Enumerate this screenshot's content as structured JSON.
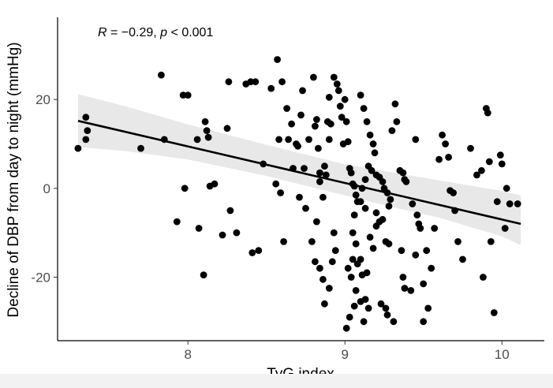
{
  "chart_data": {
    "type": "scatter",
    "xlabel": "TyG index",
    "ylabel": "Decline of DBP from day to night (mmHg)",
    "xlim": [
      7.17,
      10.27
    ],
    "ylim": [
      -34.3,
      38.5
    ],
    "x_ticks": [
      8,
      9,
      10
    ],
    "y_ticks": [
      -20,
      0,
      20
    ],
    "x_tick_labels": [
      "8",
      "9",
      "10"
    ],
    "y_tick_labels": [
      "-20",
      "0",
      "20"
    ],
    "annotation": {
      "R_label": "R",
      "R_value": " = −0.29, ",
      "p_label": "p",
      "p_value": " < 0.001"
    },
    "regression": {
      "x": [
        7.3,
        10.12
      ],
      "y": [
        15.2,
        -8.0
      ]
    },
    "confidence_band": {
      "x": [
        7.3,
        7.6,
        8.0,
        8.5,
        9.0,
        9.3,
        9.6,
        10.0,
        10.12
      ],
      "upper": [
        21.2,
        18.5,
        14.4,
        9.8,
        5.4,
        3.6,
        1.8,
        -0.6,
        -1.6
      ],
      "lower": [
        9.3,
        8.4,
        6.5,
        2.8,
        -1.6,
        -4.2,
        -6.6,
        -10.8,
        -12.8
      ]
    },
    "points": [
      [
        7.3,
        9
      ],
      [
        7.35,
        16
      ],
      [
        7.36,
        13
      ],
      [
        7.35,
        11
      ],
      [
        7.7,
        9
      ],
      [
        7.83,
        25.5
      ],
      [
        7.85,
        11
      ],
      [
        7.97,
        21
      ],
      [
        8.0,
        21
      ],
      [
        7.98,
        0
      ],
      [
        7.93,
        -7.5
      ],
      [
        8.06,
        11
      ],
      [
        8.11,
        15
      ],
      [
        8.12,
        13
      ],
      [
        8.13,
        11.5
      ],
      [
        8.14,
        0.5
      ],
      [
        8.17,
        1
      ],
      [
        8.07,
        -9
      ],
      [
        8.1,
        -19.5
      ],
      [
        8.22,
        -10.5
      ],
      [
        8.25,
        13.5
      ],
      [
        8.26,
        24
      ],
      [
        8.27,
        -5
      ],
      [
        8.31,
        -10
      ],
      [
        8.37,
        23.5
      ],
      [
        8.4,
        24
      ],
      [
        8.43,
        24
      ],
      [
        8.41,
        -14.5
      ],
      [
        8.45,
        -14
      ],
      [
        8.48,
        5.5
      ],
      [
        8.53,
        22.5
      ],
      [
        8.56,
        1
      ],
      [
        8.57,
        29
      ],
      [
        8.6,
        24
      ],
      [
        8.58,
        11
      ],
      [
        8.59,
        -1
      ],
      [
        8.61,
        -12
      ],
      [
        8.63,
        18
      ],
      [
        8.64,
        11
      ],
      [
        8.66,
        14.5
      ],
      [
        8.67,
        4.5
      ],
      [
        8.69,
        10
      ],
      [
        8.7,
        9.5
      ],
      [
        8.71,
        -2
      ],
      [
        8.73,
        22
      ],
      [
        8.72,
        16.5
      ],
      [
        8.74,
        4.5
      ],
      [
        8.75,
        -4.5
      ],
      [
        8.77,
        11
      ],
      [
        8.79,
        -12
      ],
      [
        8.8,
        25
      ],
      [
        8.81,
        14
      ],
      [
        8.82,
        15.5
      ],
      [
        8.83,
        9
      ],
      [
        8.84,
        3.5
      ],
      [
        8.84,
        1.5
      ],
      [
        8.86,
        -2
      ],
      [
        8.82,
        -7.5
      ],
      [
        8.81,
        -16.5
      ],
      [
        8.84,
        -18
      ],
      [
        8.86,
        -20.5
      ],
      [
        8.87,
        5
      ],
      [
        8.88,
        3
      ],
      [
        8.89,
        15
      ],
      [
        8.9,
        20.5
      ],
      [
        8.91,
        14.5
      ],
      [
        8.9,
        11
      ],
      [
        8.92,
        -16.5
      ],
      [
        8.93,
        -10
      ],
      [
        8.94,
        -14
      ],
      [
        8.87,
        -26
      ],
      [
        8.9,
        -22.5
      ],
      [
        8.93,
        25
      ],
      [
        8.95,
        23.5
      ],
      [
        8.96,
        22
      ],
      [
        8.97,
        18.5
      ],
      [
        8.98,
        16
      ],
      [
        8.99,
        10
      ],
      [
        9.0,
        20
      ],
      [
        9.01,
        15
      ],
      [
        9.02,
        10.5
      ],
      [
        9.03,
        4.5
      ],
      [
        9.04,
        3.5
      ],
      [
        9.05,
        1
      ],
      [
        9.06,
        0.5
      ],
      [
        9.07,
        -1.5
      ],
      [
        9.08,
        -3
      ],
      [
        9.06,
        -6
      ],
      [
        9.05,
        -10
      ],
      [
        9.07,
        -12.5
      ],
      [
        9.05,
        -16
      ],
      [
        9.08,
        -17
      ],
      [
        9.1,
        -16
      ],
      [
        9.02,
        -18
      ],
      [
        9.04,
        -20
      ],
      [
        9.01,
        -31.5
      ],
      [
        9.03,
        -29
      ],
      [
        9.06,
        -26.5
      ],
      [
        9.07,
        -23
      ],
      [
        9.1,
        -25.5
      ],
      [
        9.12,
        -30
      ],
      [
        9.13,
        -25
      ],
      [
        9.15,
        -27
      ],
      [
        9.11,
        -19.5
      ],
      [
        9.14,
        -19
      ],
      [
        9.16,
        -11
      ],
      [
        9.18,
        -13.5
      ],
      [
        9.2,
        -8.5
      ],
      [
        9.22,
        -7.5
      ],
      [
        9.24,
        -7
      ],
      [
        9.26,
        -12
      ],
      [
        9.28,
        -12.5
      ],
      [
        9.1,
        21
      ],
      [
        9.12,
        18
      ],
      [
        9.14,
        15
      ],
      [
        9.16,
        12
      ],
      [
        9.18,
        10
      ],
      [
        9.19,
        8
      ],
      [
        9.15,
        5
      ],
      [
        9.17,
        4
      ],
      [
        9.2,
        3
      ],
      [
        9.22,
        2.5
      ],
      [
        9.24,
        1.5
      ],
      [
        9.25,
        0
      ],
      [
        9.27,
        -1
      ],
      [
        9.28,
        -4
      ],
      [
        9.29,
        -2.5
      ],
      [
        9.13,
        2
      ],
      [
        9.11,
        0
      ],
      [
        9.1,
        -3
      ],
      [
        9.13,
        -4.5
      ],
      [
        9.2,
        -5.5
      ],
      [
        9.23,
        -26
      ],
      [
        9.26,
        -27
      ],
      [
        9.31,
        -30
      ],
      [
        9.27,
        -28.5
      ],
      [
        9.3,
        13
      ],
      [
        9.32,
        19
      ],
      [
        9.33,
        15
      ],
      [
        9.35,
        4
      ],
      [
        9.37,
        3.5
      ],
      [
        9.38,
        2
      ],
      [
        9.39,
        1.5
      ],
      [
        9.36,
        -14
      ],
      [
        9.37,
        -20
      ],
      [
        9.38,
        -22.5
      ],
      [
        9.42,
        -23
      ],
      [
        9.45,
        11
      ],
      [
        9.46,
        -6
      ],
      [
        9.47,
        -8
      ],
      [
        9.48,
        -9
      ],
      [
        9.43,
        -3.5
      ],
      [
        9.45,
        -15
      ],
      [
        9.5,
        -21.5
      ],
      [
        9.52,
        -14
      ],
      [
        9.53,
        -27
      ],
      [
        9.5,
        -30
      ],
      [
        9.55,
        -18
      ],
      [
        9.57,
        -9
      ],
      [
        9.6,
        6.5
      ],
      [
        9.62,
        12
      ],
      [
        9.64,
        10
      ],
      [
        9.66,
        7
      ],
      [
        9.67,
        -0.5
      ],
      [
        9.69,
        -1
      ],
      [
        9.7,
        -5
      ],
      [
        9.72,
        -12
      ],
      [
        9.75,
        -16
      ],
      [
        9.8,
        9
      ],
      [
        9.84,
        3
      ],
      [
        9.87,
        4
      ],
      [
        9.88,
        -20
      ],
      [
        9.9,
        18
      ],
      [
        9.91,
        17
      ],
      [
        9.93,
        -12
      ],
      [
        9.95,
        -28
      ],
      [
        9.97,
        -3
      ],
      [
        9.99,
        7.5
      ],
      [
        10.0,
        5.5
      ],
      [
        10.02,
        -9
      ],
      [
        10.03,
        0
      ],
      [
        10.05,
        -3.5
      ],
      [
        10.1,
        -3.5
      ],
      [
        9.92,
        6
      ]
    ]
  }
}
